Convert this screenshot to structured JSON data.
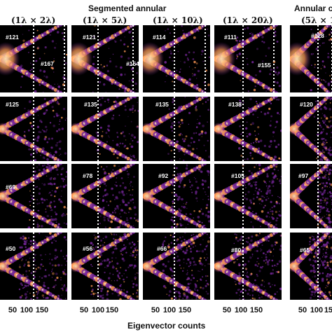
{
  "figure": {
    "group_titles": [
      "Segmented annular",
      "Annular c"
    ],
    "column_titles": [
      "(1λ × 2λ)",
      "(1λ × 5λ)",
      "(1λ × 10λ)",
      "(1λ × 20λ)",
      "(5λ × 1"
    ],
    "panel_labels": [
      [
        "#121",
        "#167",
        "#121",
        "#154",
        "#114",
        "",
        "#111",
        "#155",
        "#128"
      ],
      [
        "#125",
        "#135",
        "#135",
        "#138",
        "#120"
      ],
      [
        "#69",
        "#78",
        "#92",
        "#105",
        "#97"
      ],
      [
        "#50",
        "#56",
        "#66",
        "#80",
        "#65"
      ]
    ],
    "x_ticks": [
      "50",
      "100",
      "150",
      "50",
      "100",
      "150",
      "50",
      "100",
      "150",
      "50",
      "100",
      "150",
      "50",
      "100",
      "150"
    ],
    "x_axis_title": "Eigenvector counts",
    "colors": {
      "background": "#000000",
      "speckle": "#7a28a0",
      "hot": "#ff9a55",
      "bright": "#ffe8b0",
      "divider": "#ffffff"
    }
  }
}
